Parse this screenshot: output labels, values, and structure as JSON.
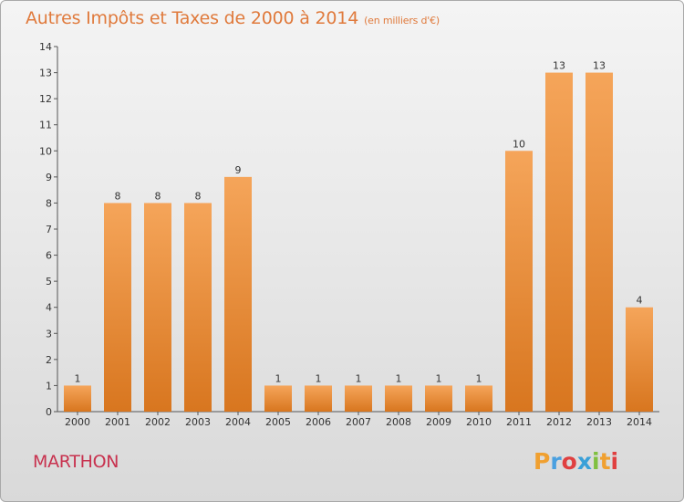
{
  "title": "Autres Impôts et Taxes de 2000 à 2014",
  "subtitle": "(en milliers d'€)",
  "commune": "MARTHON",
  "logo": {
    "letters": [
      "P",
      "r",
      "o",
      "x",
      "i",
      "t",
      "i"
    ],
    "colors": [
      "#f0a030",
      "#4aa0e0",
      "#e04040",
      "#3aa0d8",
      "#80c040",
      "#f0a030",
      "#e04040"
    ]
  },
  "colors": {
    "title": "#e07a3c",
    "commune": "#c8324f",
    "bar_top": "#f5a55a",
    "bar_bottom": "#d8761f"
  },
  "chart_data": {
    "type": "bar",
    "categories": [
      "2000",
      "2001",
      "2002",
      "2003",
      "2004",
      "2005",
      "2006",
      "2007",
      "2008",
      "2009",
      "2010",
      "2011",
      "2012",
      "2013",
      "2014"
    ],
    "values": [
      1,
      8,
      8,
      8,
      9,
      1,
      1,
      1,
      1,
      1,
      1,
      10,
      13,
      13,
      4
    ],
    "value_labels": [
      "1",
      "8",
      "8",
      "8",
      "9",
      "1",
      "1",
      "1",
      "1",
      "1",
      "1",
      "10",
      "13",
      "13",
      "4"
    ],
    "yticks": [
      "0",
      "1",
      "2",
      "3",
      "4",
      "5",
      "6",
      "7",
      "8",
      "9",
      "10",
      "11",
      "12",
      "13",
      "14"
    ],
    "ylim": [
      0,
      14
    ],
    "grid": false
  }
}
